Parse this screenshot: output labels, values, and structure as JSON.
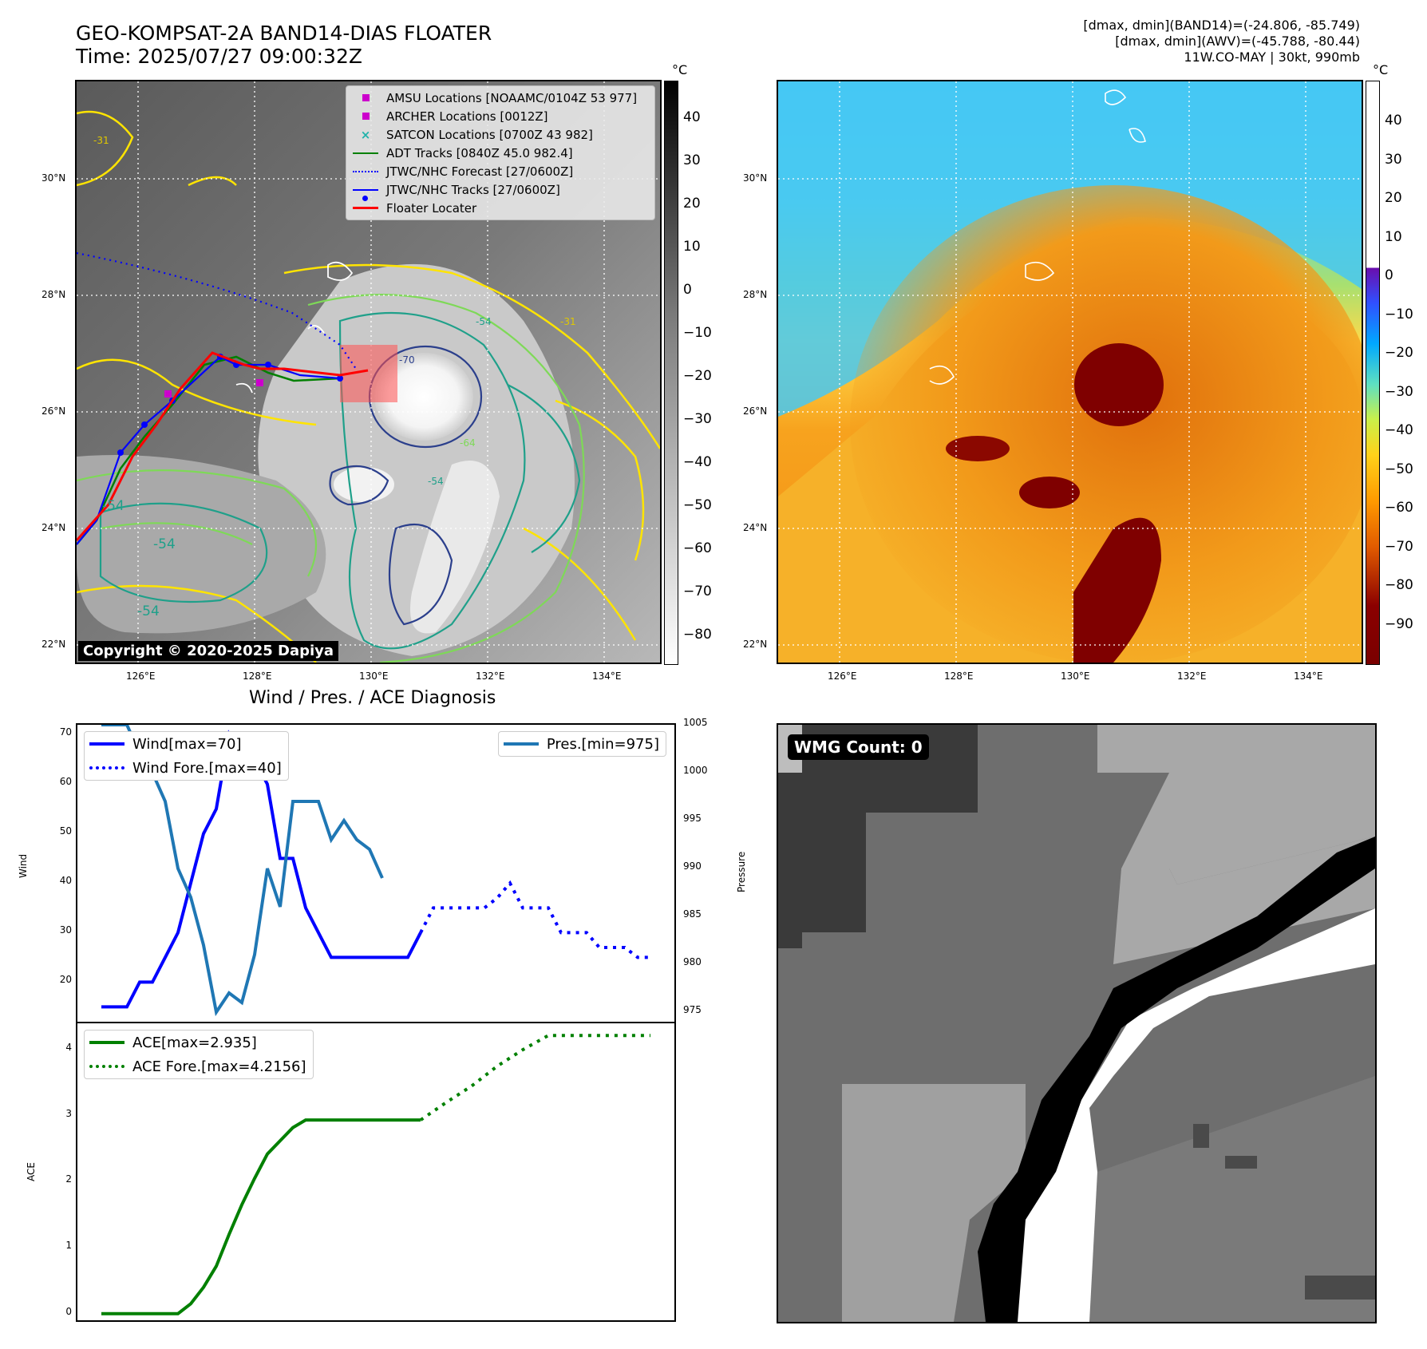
{
  "header": {
    "title_line1": "GEO-KOMPSAT-2A BAND14-DIAS FLOATER",
    "title_line2": "Time: 2025/07/27 09:00:32Z",
    "stats_line1": "[dmax, dmin](BAND14)=(-24.806, -85.749)",
    "stats_line2": "[dmax, dmin](AWV)=(-45.788, -80.44)",
    "stats_line3": "11W.CO-MAY | 30kt, 990mb"
  },
  "map_axes": {
    "lat_labels": [
      "30°N",
      "28°N",
      "26°N",
      "24°N",
      "22°N"
    ],
    "lon_labels": [
      "126°E",
      "128°E",
      "130°E",
      "132°E",
      "134°E"
    ]
  },
  "ir_panel": {
    "copyright": "Copyright © 2020-2025 Dapiya",
    "colorbar_unit": "°C",
    "colorbar_ticks": [
      "40",
      "30",
      "20",
      "10",
      "0",
      "−10",
      "−20",
      "−30",
      "−40",
      "−50",
      "−60",
      "−70",
      "−80"
    ],
    "contour_labels": [
      "-31",
      "-54",
      "-54",
      "-54",
      "-54",
      "-70",
      "-64",
      "-54",
      "-31"
    ],
    "legend": [
      {
        "label": "AMSU Locations [NOAAMC/0104Z 53 977]",
        "color": "#cc00cc",
        "marker": "square"
      },
      {
        "label": "ARCHER Locations [0012Z]",
        "color": "#cc00cc",
        "marker": "square"
      },
      {
        "label": "SATCON Locations [0700Z 43 982]",
        "color": "#20b2aa",
        "marker": "x"
      },
      {
        "label": "ADT Tracks [0840Z 45.0 982.4]",
        "color": "#008000",
        "marker": "line"
      },
      {
        "label": "JTWC/NHC Forecast [27/0600Z]",
        "color": "#0000ff",
        "marker": "dotted"
      },
      {
        "label": "JTWC/NHC Tracks [27/0600Z]",
        "color": "#0000ff",
        "marker": "line-dot"
      },
      {
        "label": "Floater Locater",
        "color": "#ff0000",
        "marker": "line"
      }
    ]
  },
  "awv_panel": {
    "colorbar_unit": "°C",
    "colorbar_ticks": [
      "40",
      "30",
      "20",
      "10",
      "0",
      "−10",
      "−20",
      "−30",
      "−40",
      "−50",
      "−60",
      "−70",
      "−80",
      "−90"
    ]
  },
  "diag": {
    "title": "Wind / Pres. / ACE Diagnosis",
    "wind_ylabel": "Wind",
    "pres_ylabel": "Pressure",
    "ace_ylabel": "ACE",
    "wind_legend": [
      "Wind[max=70]",
      "Wind Fore.[max=40]"
    ],
    "pres_legend": [
      "Pres.[min=975]"
    ],
    "ace_legend": [
      "ACE[max=2.935]",
      "ACE Fore.[max=4.2156]"
    ]
  },
  "wmg": {
    "label": "WMG Count: 0"
  },
  "chart_data": [
    {
      "type": "line",
      "title": "Wind / Pres. / ACE Diagnosis",
      "xlabel": "",
      "ylabel": "Wind",
      "ylim": [
        12,
        72
      ],
      "yticks": [
        20,
        30,
        40,
        50,
        60,
        70
      ],
      "series": [
        {
          "name": "Wind[max=70]",
          "color": "#0000ff",
          "style": "solid",
          "x": [
            0,
            1,
            2,
            3,
            4,
            5,
            6,
            7,
            8,
            9,
            10,
            11,
            12,
            13,
            14,
            15,
            16,
            17,
            18,
            19,
            20,
            21,
            22,
            23,
            24,
            25
          ],
          "y": [
            15,
            15,
            15,
            20,
            20,
            25,
            30,
            40,
            50,
            55,
            70,
            65,
            65,
            60,
            45,
            45,
            35,
            30,
            25,
            25,
            25,
            25,
            25,
            25,
            25,
            30
          ]
        },
        {
          "name": "Wind Fore.[max=40]",
          "color": "#0000ff",
          "style": "dotted",
          "x": [
            25,
            26,
            27,
            28,
            29,
            30,
            31,
            32,
            33,
            34,
            35,
            36,
            37,
            38,
            39,
            40,
            41,
            42,
            43
          ],
          "y": [
            30,
            35,
            35,
            35,
            35,
            35,
            37,
            40,
            35,
            35,
            35,
            30,
            30,
            30,
            27,
            27,
            27,
            25,
            25
          ]
        }
      ]
    },
    {
      "type": "line",
      "ylabel": "Pressure",
      "ylim": [
        974,
        1005
      ],
      "yticks": [
        975,
        980,
        985,
        990,
        995,
        1000,
        1005
      ],
      "series": [
        {
          "name": "Pres.[min=975]",
          "color": "#1f77b4",
          "style": "solid",
          "x": [
            0,
            1,
            2,
            3,
            4,
            5,
            6,
            7,
            8,
            9,
            10,
            11,
            12,
            13,
            14,
            15,
            16,
            17,
            18,
            19,
            20,
            21,
            22,
            23,
            24,
            25
          ],
          "y": [
            1005,
            1005,
            1005,
            1002,
            1000,
            997,
            990,
            987,
            982,
            975,
            977,
            976,
            981,
            990,
            986,
            997,
            997,
            997,
            993,
            995,
            993,
            992,
            989,
            null,
            null,
            null
          ]
        }
      ]
    },
    {
      "type": "line",
      "ylabel": "ACE",
      "ylim": [
        -0.1,
        4.4
      ],
      "yticks": [
        0,
        1,
        2,
        3,
        4
      ],
      "series": [
        {
          "name": "ACE[max=2.935]",
          "color": "#008000",
          "style": "solid",
          "x": [
            0,
            1,
            2,
            3,
            4,
            5,
            6,
            7,
            8,
            9,
            10,
            11,
            12,
            13,
            14,
            15,
            16,
            17,
            18,
            19,
            20,
            21,
            22,
            23,
            24,
            25
          ],
          "y": [
            0,
            0,
            0,
            0,
            0,
            0,
            0,
            0.15,
            0.4,
            0.72,
            1.2,
            1.65,
            2.05,
            2.42,
            2.62,
            2.82,
            2.935,
            2.935,
            2.935,
            2.935,
            2.935,
            2.935,
            2.935,
            2.935,
            2.935,
            2.935
          ]
        },
        {
          "name": "ACE Fore.[max=4.2156]",
          "color": "#008000",
          "style": "dotted",
          "x": [
            25,
            27,
            29,
            31,
            33,
            35,
            37,
            39,
            41,
            43
          ],
          "y": [
            2.935,
            3.2,
            3.45,
            3.75,
            4.0,
            4.2156,
            4.2156,
            4.2156,
            4.2156,
            4.2156
          ]
        }
      ]
    }
  ]
}
